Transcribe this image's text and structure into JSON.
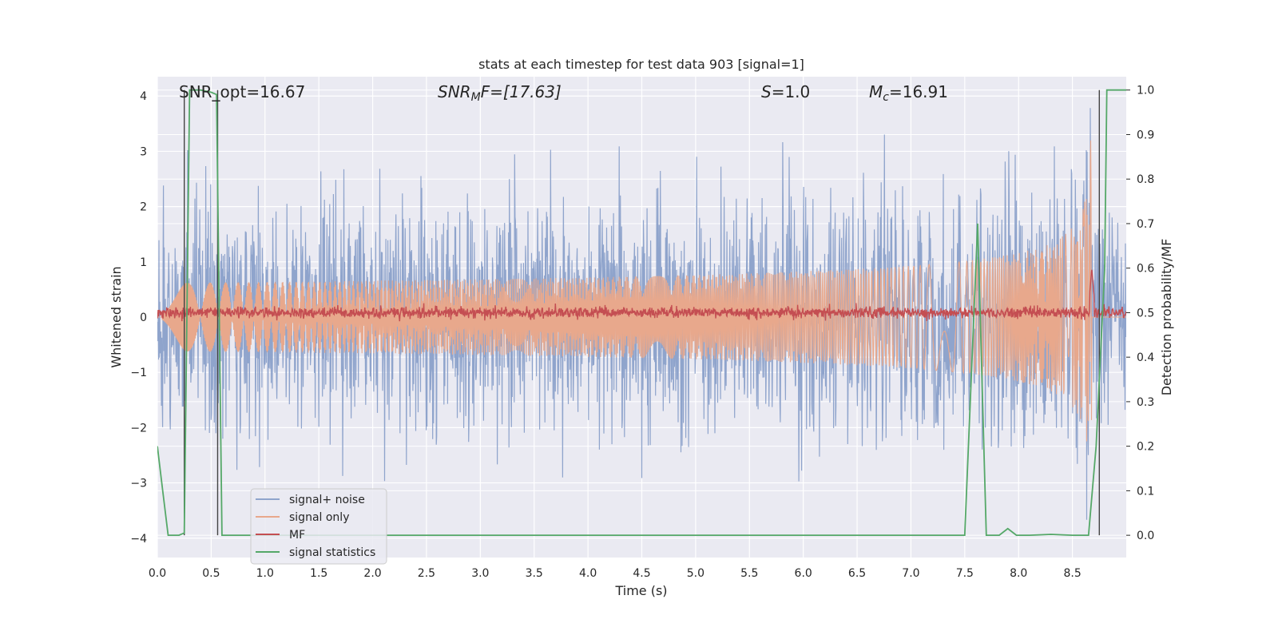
{
  "chart_data": {
    "type": "line",
    "title": "stats at each timestep for test data 903 [signal=1]",
    "xlabel": "Time (s)",
    "ylabel_left": "Whitened strain",
    "ylabel_right": "Detection probability/MF",
    "xlim": [
      0.0,
      9.0
    ],
    "ylim_left": [
      -4.35,
      4.35
    ],
    "ylim_right": [
      -0.05,
      1.03
    ],
    "x_ticks": [
      "0.0",
      "0.5",
      "1.0",
      "1.5",
      "2.0",
      "2.5",
      "3.0",
      "3.5",
      "4.0",
      "4.5",
      "5.0",
      "5.5",
      "6.0",
      "6.5",
      "7.0",
      "7.5",
      "8.0",
      "8.5"
    ],
    "left_ticks": [
      "4",
      "3",
      "2",
      "1",
      "0",
      "−1",
      "−2",
      "−3",
      "−4"
    ],
    "right_ticks": [
      "1.0",
      "0.9",
      "0.8",
      "0.7",
      "0.6",
      "0.5",
      "0.4",
      "0.3",
      "0.2",
      "0.1",
      "0.0"
    ],
    "annotations": {
      "snr_opt": "SNR_opt=16.67",
      "snr_mf_base": "SNR",
      "snr_mf_sub": "M",
      "snr_mf_rest": "F=[17.63]",
      "s_label": "S",
      "s_value": "=1.0",
      "mc_base": "M",
      "mc_sub": "c",
      "mc_value": "=16.91"
    },
    "legend": {
      "location": "lower-left",
      "entries": [
        "signal+ noise",
        "signal only",
        "MF",
        "signal statistics"
      ]
    },
    "series": [
      {
        "name": "signal+ noise",
        "color": "#8fa4cc",
        "description": "whitened strain noise, amplitude ~±2.5",
        "noise_sigma": 0.9
      },
      {
        "name": "signal only",
        "color": "#e8a88c",
        "description": "chirp rising to ~3.2 at t≈8.68 s",
        "peak_time": 8.68,
        "peak_amp": 3.2
      },
      {
        "name": "MF",
        "color": "#c44e52",
        "description": "matched filter output ≈0.5 with peak ~0.6 at t≈8.68 s",
        "baseline": 0.5,
        "peak": 0.6
      },
      {
        "name": "signal statistics",
        "color": "#55a868",
        "x": [
          0.0,
          0.05,
          0.1,
          0.15,
          0.2,
          0.25,
          0.3,
          0.35,
          0.4,
          0.5,
          0.55,
          0.6,
          0.65,
          0.7,
          1.0,
          2.0,
          3.0,
          4.0,
          5.0,
          6.0,
          7.0,
          7.35,
          7.5,
          7.62,
          7.7,
          7.75,
          7.82,
          7.9,
          7.98,
          8.1,
          8.3,
          8.5,
          8.62,
          8.65,
          8.72,
          8.8,
          8.82,
          8.9,
          9.0
        ],
        "values": [
          0.2,
          0.1,
          0.0,
          0.0,
          0.0,
          0.005,
          1.0,
          1.0,
          1.0,
          0.995,
          0.99,
          0.0,
          0.0,
          0.0,
          0.0,
          0.0,
          0.0,
          0.0,
          0.0,
          0.0,
          0.0,
          0.0,
          0.0,
          0.7,
          0.0,
          0.0,
          0.0,
          0.015,
          0.0,
          0.0,
          0.002,
          0.0,
          0.0,
          0.0,
          0.2,
          0.6,
          1.0,
          1.0,
          1.0
        ]
      }
    ],
    "vertical_lines": {
      "color": "#444444",
      "x": [
        0.25,
        0.56,
        8.75
      ]
    },
    "colors": {
      "background": "#eaeaf2",
      "grid": "#ffffff"
    }
  }
}
